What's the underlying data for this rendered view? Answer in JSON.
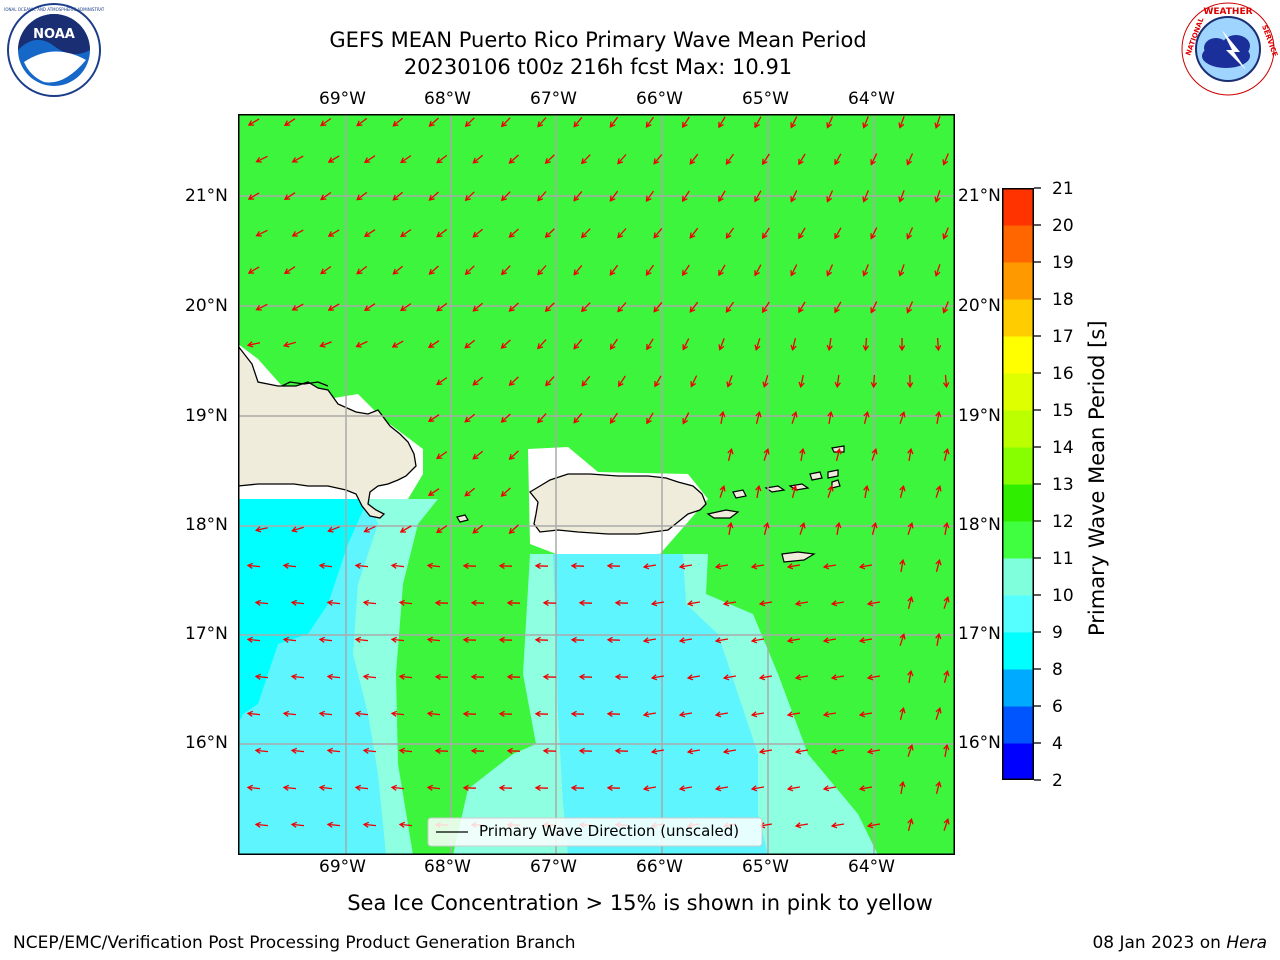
{
  "title_line1": "GEFS MEAN Puerto Rico Primary Wave Mean Period",
  "title_line2": "20230106 t00z 216h fcst   Max: 10.91",
  "lon_labels": [
    "69°W",
    "68°W",
    "67°W",
    "66°W",
    "65°W",
    "64°W"
  ],
  "lat_labels": [
    "21°N",
    "20°N",
    "19°N",
    "18°N",
    "17°N",
    "16°N"
  ],
  "colorbar": {
    "label": "Primary Wave Mean Period [s]",
    "ticks": [
      "2",
      "4",
      "6",
      "8",
      "9",
      "10",
      "11",
      "12",
      "13",
      "14",
      "15",
      "16",
      "17",
      "18",
      "19",
      "20",
      "21"
    ],
    "colors": [
      "#0000ff",
      "#0055ff",
      "#00aaff",
      "#00ffff",
      "#55ffff",
      "#80ffdd",
      "#40ff40",
      "#30ee00",
      "#88ff00",
      "#bbff00",
      "#ddff00",
      "#ffff00",
      "#ffcc00",
      "#ff9900",
      "#ff6600",
      "#ff3300",
      "#ff0000"
    ]
  },
  "legend_text": "Primary Wave Direction (unscaled)",
  "note": "Sea Ice Concentration > 15% is shown in pink to yellow",
  "footer_left": "NCEP/EMC/Verification Post Processing Product Generation Branch",
  "footer_date": "08 Jan 2023 on ",
  "footer_machine": "Hera",
  "logos": {
    "left": "NOAA",
    "right": "NATIONAL WEATHER SERVICE"
  },
  "colors": {
    "land": "#efecdc",
    "green": "#3df53d",
    "pale": "#8effe0",
    "cyan": "#5ef5ff",
    "bright_cyan": "#00ffff",
    "arrow": "#ee0000",
    "grid": "#aaaaaa"
  }
}
